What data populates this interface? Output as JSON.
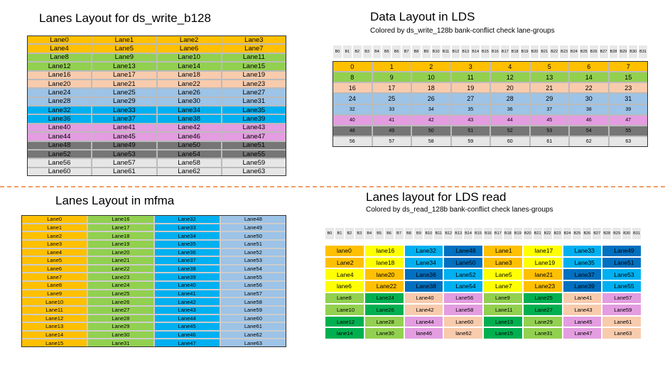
{
  "write_layout": {
    "title": "Lanes Layout for ds_write_b128",
    "rows": [
      [
        "Lane0",
        "Lane1",
        "Lane2",
        "Lane3"
      ],
      [
        "Lane4",
        "Lane5",
        "Lane6",
        "Lane7"
      ],
      [
        "Lane8",
        "Lane9",
        "Lane10",
        "Lane11"
      ],
      [
        "Lane12",
        "Lane13",
        "Lane14",
        "Lane15"
      ],
      [
        "Lane16",
        "Lane17",
        "Lane18",
        "Lane19"
      ],
      [
        "Lane20",
        "Lane21",
        "Lane22",
        "Lane23"
      ],
      [
        "Lane24",
        "Lane25",
        "Lane26",
        "Lane27"
      ],
      [
        "Lane28",
        "Lane29",
        "Lane30",
        "Lane31"
      ],
      [
        "Lane32",
        "Lane33",
        "Lane34",
        "Lane35"
      ],
      [
        "Lane36",
        "Lane37",
        "Lane38",
        "Lane39"
      ],
      [
        "Lane40",
        "Lane41",
        "Lane42",
        "Lane43"
      ],
      [
        "Lane44",
        "Lane45",
        "Lane46",
        "Lane47"
      ],
      [
        "Lane48",
        "Lane49",
        "Lane50",
        "Lane51"
      ],
      [
        "Lane52",
        "Lane53",
        "Lane54",
        "Lane55"
      ],
      [
        "Lane56",
        "Lane57",
        "Lane58",
        "Lane59"
      ],
      [
        "Lane60",
        "Lane61",
        "Lane62",
        "Lane63"
      ]
    ]
  },
  "lds_layout": {
    "title": "Data Layout in LDS",
    "subtitle": "Colored by ds_write_128b bank-conflict check lane-groups",
    "banks": [
      "B0",
      "B1",
      "B2",
      "B3",
      "B4",
      "B5",
      "B6",
      "B7",
      "B8",
      "B9",
      "B10",
      "B11",
      "B12",
      "B13",
      "B14",
      "B15",
      "B16",
      "B17",
      "B18",
      "B19",
      "B20",
      "B21",
      "B22",
      "B23",
      "B24",
      "B25",
      "B26",
      "B27",
      "B28",
      "B29",
      "B30",
      "B31"
    ],
    "rows": [
      [
        0,
        1,
        2,
        3,
        4,
        5,
        6,
        7
      ],
      [
        8,
        9,
        10,
        11,
        12,
        13,
        14,
        15
      ],
      [
        16,
        17,
        18,
        19,
        20,
        21,
        22,
        23
      ],
      [
        24,
        25,
        26,
        27,
        28,
        29,
        30,
        31
      ],
      [
        32,
        33,
        34,
        35,
        36,
        37,
        38,
        39
      ],
      [
        40,
        41,
        42,
        43,
        44,
        45,
        46,
        47
      ],
      [
        48,
        49,
        50,
        51,
        52,
        53,
        54,
        55
      ],
      [
        56,
        57,
        58,
        59,
        60,
        61,
        62,
        63
      ]
    ]
  },
  "mfma_layout": {
    "title": "Lanes Layout in mfma",
    "rows": [
      [
        "Lane0",
        "Lane16",
        "Lane32",
        "Lane48"
      ],
      [
        "Lane1",
        "Lane17",
        "Lane33",
        "Lane49"
      ],
      [
        "Lane2",
        "Lane18",
        "Lane34",
        "Lane50"
      ],
      [
        "Lane3",
        "Lane19",
        "Lane35",
        "Lane51"
      ],
      [
        "Lane4",
        "Lane20",
        "Lane36",
        "Lane52"
      ],
      [
        "Lane5",
        "Lane21",
        "Lane37",
        "Lane53"
      ],
      [
        "Lane6",
        "Lane22",
        "Lane38",
        "Lane54"
      ],
      [
        "Lane7",
        "Lane23",
        "Lane39",
        "Lane55"
      ],
      [
        "Lane8",
        "Lane24",
        "Lane40",
        "Lane56"
      ],
      [
        "Lane9",
        "Lane25",
        "Lane41",
        "Lane57"
      ],
      [
        "Lane10",
        "Lane26",
        "Lane42",
        "Lane58"
      ],
      [
        "Lane11",
        "Lane27",
        "Lane43",
        "Lane59"
      ],
      [
        "Lane12",
        "Lane28",
        "Lane44",
        "Lane60"
      ],
      [
        "Lane13",
        "Lane29",
        "Lane45",
        "Lane61"
      ],
      [
        "Lane14",
        "Lane30",
        "Lane46",
        "Lane62"
      ],
      [
        "Lane15",
        "Lane31",
        "Lane47",
        "Lane63"
      ]
    ]
  },
  "read_layout": {
    "title": "Lanes layout for LDS read",
    "subtitle": "Colored by ds_read_128b bank-conflict check lanes-groups",
    "banks": [
      "B0",
      "B1",
      "B2",
      "B3",
      "B4",
      "B5",
      "B6",
      "B7",
      "B8",
      "B9",
      "B10",
      "B11",
      "B12",
      "B13",
      "B14",
      "B15",
      "B16",
      "B17",
      "B18",
      "B19",
      "B20",
      "B21",
      "B22",
      "B23",
      "B24",
      "B25",
      "B26",
      "B27",
      "B28",
      "B29",
      "B30",
      "B31"
    ],
    "rows": [
      [
        "lane0",
        "lane16",
        "Lane32",
        "Lane48",
        "Lane1",
        "lane17",
        "Lane33",
        "Lane49"
      ],
      [
        "Lane2",
        "lane18",
        "Lane34",
        "Lane50",
        "Lane3",
        "Lane19",
        "Lane35",
        "Lane51"
      ],
      [
        "Lane4",
        "lane20",
        "Lane36",
        "Lane52",
        "Lane5",
        "lane21",
        "Lane37",
        "Lane53"
      ],
      [
        "lane6",
        "Lane22",
        "Lane38",
        "Lane54",
        "Lane7",
        "Lane23",
        "Lane39",
        "Lane55"
      ],
      [
        "Lane8",
        "Lane24",
        "Lane40",
        "Lane56",
        "Lane9",
        "Lane25",
        "Lane41",
        "Lane57"
      ],
      [
        "Lane10",
        "Lane26",
        "Lane42",
        "Lane58",
        "Lane11",
        "Lane27",
        "Lane43",
        "Lane59"
      ],
      [
        "Lane12",
        "Lane28",
        "Lane44",
        "Lane60",
        "Lane13",
        "Lane29",
        "Lane45",
        "Lane61"
      ],
      [
        "lane14",
        "Lane30",
        "lane46",
        "lane62",
        "Lane15",
        "Lane31",
        "Lane47",
        "Lane63"
      ]
    ]
  }
}
